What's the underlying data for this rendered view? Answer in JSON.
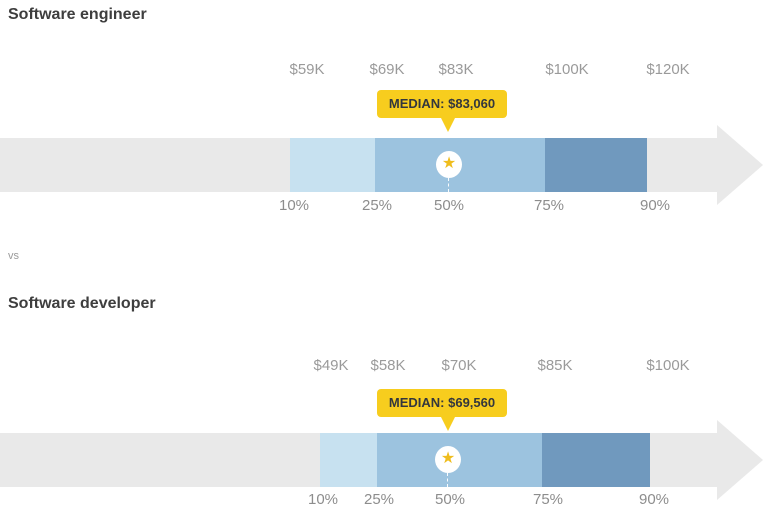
{
  "page": {
    "vs_label": "vs"
  },
  "icons": {
    "median_star": "★"
  },
  "colors": {
    "track_gray": "#e9e9e9",
    "range_10_25": "#c7e1f0",
    "range_25_75": "#9cc3df",
    "range_75_90": "#7099be",
    "median_callout_yellow": "#f7cd1e",
    "star_gold": "#efbd1d",
    "title_text": "#3e3e3e",
    "tick_text": "#9a9a9a"
  },
  "chart_data": [
    {
      "type": "bar",
      "subtype": "salary_percentile_range_arrow",
      "orientation": "horizontal",
      "title": "Software engineer",
      "median": 83060,
      "median_label": "MEDIAN: $83,060",
      "percentiles": [
        10,
        25,
        50,
        75,
        90
      ],
      "percentile_tick_labels": [
        "10%",
        "25%",
        "50%",
        "75%",
        "90%"
      ],
      "salaries": [
        59000,
        69000,
        83000,
        100000,
        120000
      ],
      "salary_tick_labels": [
        "$59K",
        "$69K",
        "$83K",
        "$100K",
        "$120K"
      ],
      "segments": [
        {
          "range": "10-25",
          "color": "#c7e1f0"
        },
        {
          "range": "25-75",
          "color": "#9cc3df"
        },
        {
          "range": "75-90",
          "color": "#7099be"
        }
      ],
      "legend": "none",
      "grid": false
    },
    {
      "type": "bar",
      "subtype": "salary_percentile_range_arrow",
      "orientation": "horizontal",
      "title": "Software developer",
      "median": 69560,
      "median_label": "MEDIAN: $69,560",
      "percentiles": [
        10,
        25,
        50,
        75,
        90
      ],
      "percentile_tick_labels": [
        "10%",
        "25%",
        "50%",
        "75%",
        "90%"
      ],
      "salaries": [
        49000,
        58000,
        70000,
        85000,
        100000
      ],
      "salary_tick_labels": [
        "$49K",
        "$58K",
        "$70K",
        "$85K",
        "$100K"
      ],
      "segments": [
        {
          "range": "10-25",
          "color": "#c7e1f0"
        },
        {
          "range": "25-75",
          "color": "#9cc3df"
        },
        {
          "range": "75-90",
          "color": "#7099be"
        }
      ],
      "legend": "none",
      "grid": false
    }
  ]
}
